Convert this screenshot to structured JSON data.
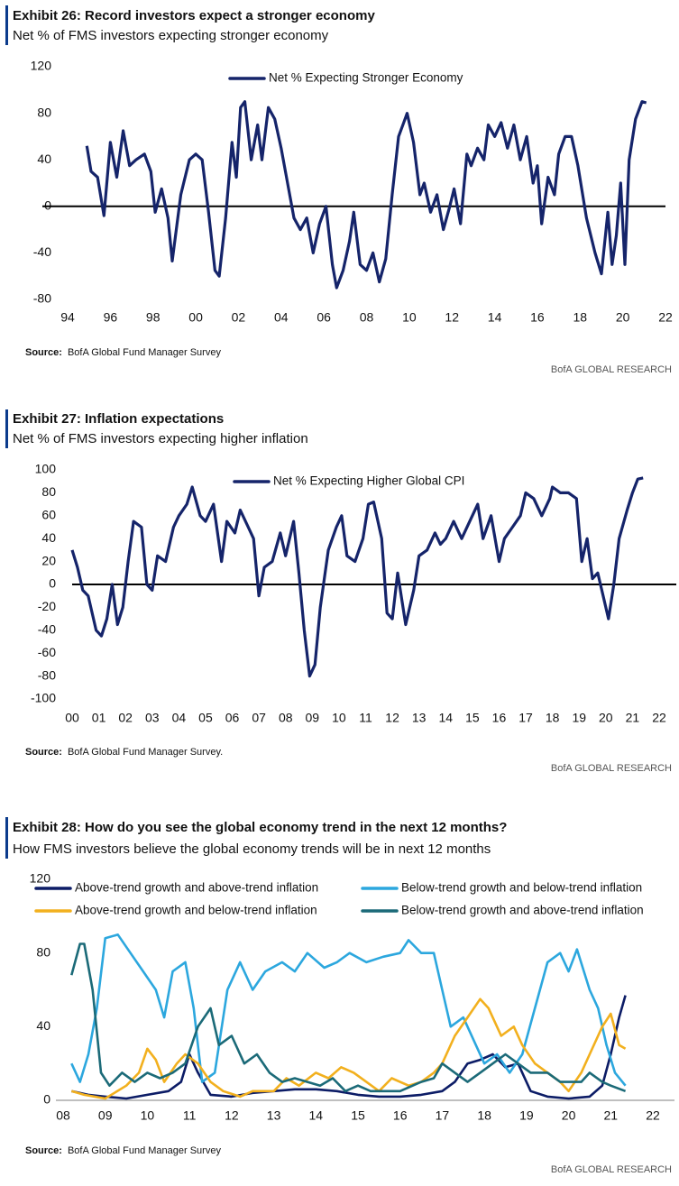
{
  "chart_data": [
    {
      "type": "line",
      "title": "Exhibit 26: Record investors expect a stronger economy",
      "subtitle": "Net % of FMS investors expecting stronger economy",
      "source_label": "Source:",
      "source": "BofA Global Fund Manager Survey",
      "credit": "BofA GLOBAL RESEARCH",
      "legend": "top",
      "xlim": [
        1994,
        2022
      ],
      "ylim": [
        -80,
        120
      ],
      "xticks": [
        {
          "value": 1994,
          "label": "94"
        },
        {
          "value": 1996,
          "label": "96"
        },
        {
          "value": 1998,
          "label": "98"
        },
        {
          "value": 2000,
          "label": "00"
        },
        {
          "value": 2002,
          "label": "02"
        },
        {
          "value": 2004,
          "label": "04"
        },
        {
          "value": 2006,
          "label": "06"
        },
        {
          "value": 2008,
          "label": "08"
        },
        {
          "value": 2010,
          "label": "10"
        },
        {
          "value": 2012,
          "label": "12"
        },
        {
          "value": 2014,
          "label": "14"
        },
        {
          "value": 2016,
          "label": "16"
        },
        {
          "value": 2018,
          "label": "18"
        },
        {
          "value": 2020,
          "label": "20"
        },
        {
          "value": 2022,
          "label": "22"
        }
      ],
      "yticks": [
        -80,
        -40,
        0,
        40,
        80,
        120
      ],
      "series": [
        {
          "name": "Net % Expecting Stronger Economy",
          "color": "#15246a",
          "x": [
            1994.9,
            1995.1,
            1995.4,
            1995.7,
            1996.0,
            1996.3,
            1996.6,
            1996.9,
            1997.2,
            1997.6,
            1997.9,
            1998.1,
            1998.4,
            1998.7,
            1998.9,
            1999.3,
            1999.7,
            2000.0,
            2000.3,
            2000.6,
            2000.9,
            2001.1,
            2001.4,
            2001.7,
            2001.9,
            2002.1,
            2002.3,
            2002.6,
            2002.9,
            2003.1,
            2003.4,
            2003.7,
            2004.0,
            2004.3,
            2004.6,
            2004.9,
            2005.2,
            2005.5,
            2005.8,
            2006.1,
            2006.4,
            2006.6,
            2006.9,
            2007.2,
            2007.4,
            2007.7,
            2008.0,
            2008.3,
            2008.6,
            2008.9,
            2009.2,
            2009.5,
            2009.7,
            2009.9,
            2010.2,
            2010.5,
            2010.7,
            2011.0,
            2011.3,
            2011.6,
            2011.9,
            2012.1,
            2012.4,
            2012.7,
            2012.9,
            2013.2,
            2013.5,
            2013.7,
            2014.0,
            2014.3,
            2014.6,
            2014.9,
            2015.2,
            2015.5,
            2015.8,
            2016.0,
            2016.2,
            2016.5,
            2016.8,
            2017.0,
            2017.3,
            2017.6,
            2017.9,
            2018.3,
            2018.7,
            2019.0,
            2019.3,
            2019.5,
            2019.7,
            2019.9,
            2020.1,
            2020.3,
            2020.6,
            2020.9,
            2021.1
          ],
          "values": [
            52,
            30,
            25,
            -8,
            55,
            25,
            65,
            35,
            40,
            45,
            30,
            -5,
            15,
            -10,
            -47,
            10,
            40,
            45,
            40,
            -5,
            -55,
            -60,
            -10,
            55,
            25,
            85,
            90,
            40,
            70,
            40,
            85,
            75,
            50,
            20,
            -10,
            -20,
            -10,
            -40,
            -15,
            0,
            -50,
            -70,
            -55,
            -30,
            -5,
            -50,
            -55,
            -40,
            -65,
            -45,
            10,
            60,
            70,
            80,
            55,
            10,
            20,
            -5,
            10,
            -20,
            0,
            15,
            -15,
            45,
            35,
            50,
            40,
            70,
            60,
            72,
            50,
            70,
            40,
            60,
            20,
            35,
            -15,
            25,
            10,
            45,
            60,
            60,
            35,
            -10,
            -40,
            -58,
            -5,
            -50,
            -25,
            20,
            -50,
            40,
            75,
            90,
            89
          ]
        }
      ]
    },
    {
      "type": "line",
      "title": "Exhibit 27: Inflation expectations",
      "subtitle": "Net % of FMS investors expecting higher inflation",
      "source_label": "Source:",
      "source": "BofA Global Fund Manager Survey.",
      "credit": "BofA GLOBAL RESEARCH",
      "legend": "top",
      "xlim": [
        2000,
        2022
      ],
      "ylim": [
        -100,
        100
      ],
      "xticks": [
        {
          "value": 2000,
          "label": "00"
        },
        {
          "value": 2001,
          "label": "01"
        },
        {
          "value": 2002,
          "label": "02"
        },
        {
          "value": 2003,
          "label": "03"
        },
        {
          "value": 2004,
          "label": "04"
        },
        {
          "value": 2005,
          "label": "05"
        },
        {
          "value": 2006,
          "label": "06"
        },
        {
          "value": 2007,
          "label": "07"
        },
        {
          "value": 2008,
          "label": "08"
        },
        {
          "value": 2009,
          "label": "09"
        },
        {
          "value": 2010,
          "label": "10"
        },
        {
          "value": 2011,
          "label": "11"
        },
        {
          "value": 2012,
          "label": "12"
        },
        {
          "value": 2013,
          "label": "13"
        },
        {
          "value": 2014,
          "label": "14"
        },
        {
          "value": 2015,
          "label": "15"
        },
        {
          "value": 2016,
          "label": "16"
        },
        {
          "value": 2017,
          "label": "17"
        },
        {
          "value": 2018,
          "label": "18"
        },
        {
          "value": 2019,
          "label": "19"
        },
        {
          "value": 2020,
          "label": "20"
        },
        {
          "value": 2021,
          "label": "21"
        },
        {
          "value": 2022,
          "label": "22"
        }
      ],
      "yticks": [
        -100,
        -80,
        -60,
        -40,
        -20,
        0,
        20,
        40,
        60,
        80,
        100
      ],
      "series": [
        {
          "name": "Net % Expecting Higher Global CPI",
          "color": "#15246a",
          "x": [
            2000.0,
            2000.2,
            2000.4,
            2000.6,
            2000.9,
            2001.1,
            2001.3,
            2001.5,
            2001.7,
            2001.9,
            2002.1,
            2002.3,
            2002.6,
            2002.8,
            2003.0,
            2003.2,
            2003.5,
            2003.8,
            2004.0,
            2004.3,
            2004.5,
            2004.8,
            2005.0,
            2005.3,
            2005.6,
            2005.8,
            2006.1,
            2006.3,
            2006.6,
            2006.8,
            2007.0,
            2007.2,
            2007.5,
            2007.8,
            2008.0,
            2008.3,
            2008.5,
            2008.7,
            2008.9,
            2009.1,
            2009.3,
            2009.6,
            2009.9,
            2010.1,
            2010.3,
            2010.6,
            2010.9,
            2011.1,
            2011.3,
            2011.6,
            2011.8,
            2012.0,
            2012.2,
            2012.5,
            2012.8,
            2013.0,
            2013.3,
            2013.6,
            2013.8,
            2014.0,
            2014.3,
            2014.6,
            2014.9,
            2015.2,
            2015.4,
            2015.7,
            2016.0,
            2016.2,
            2016.5,
            2016.8,
            2017.0,
            2017.3,
            2017.6,
            2017.9,
            2018.0,
            2018.3,
            2018.6,
            2018.9,
            2019.1,
            2019.3,
            2019.5,
            2019.7,
            2019.9,
            2020.1,
            2020.3,
            2020.5,
            2020.8,
            2021.0,
            2021.2,
            2021.4
          ],
          "values": [
            30,
            15,
            -5,
            -10,
            -40,
            -45,
            -30,
            0,
            -35,
            -20,
            20,
            55,
            50,
            0,
            -5,
            25,
            20,
            50,
            60,
            70,
            85,
            60,
            55,
            70,
            20,
            55,
            45,
            65,
            50,
            40,
            -10,
            15,
            20,
            45,
            25,
            55,
            10,
            -40,
            -80,
            -70,
            -20,
            30,
            50,
            60,
            25,
            20,
            40,
            70,
            72,
            40,
            -25,
            -30,
            10,
            -35,
            -5,
            25,
            30,
            45,
            35,
            40,
            55,
            40,
            55,
            70,
            40,
            60,
            20,
            40,
            50,
            60,
            80,
            75,
            60,
            75,
            85,
            80,
            80,
            75,
            20,
            40,
            5,
            10,
            -10,
            -30,
            0,
            40,
            65,
            80,
            92,
            93
          ]
        }
      ]
    },
    {
      "type": "line",
      "title": "Exhibit 28: How do you see the global economy trend in the next 12 months?",
      "subtitle": "How FMS investors believe the global economy trends will be in next 12 months",
      "source_label": "Source:",
      "source": "BofA Global Fund Manager Survey",
      "credit": "BofA GLOBAL RESEARCH",
      "legend": "top",
      "xlim": [
        2008,
        2022
      ],
      "ylim": [
        0,
        120
      ],
      "xticks": [
        {
          "value": 2008,
          "label": "08"
        },
        {
          "value": 2009,
          "label": "09"
        },
        {
          "value": 2010,
          "label": "10"
        },
        {
          "value": 2011,
          "label": "11"
        },
        {
          "value": 2012,
          "label": "12"
        },
        {
          "value": 2013,
          "label": "13"
        },
        {
          "value": 2014,
          "label": "14"
        },
        {
          "value": 2015,
          "label": "15"
        },
        {
          "value": 2016,
          "label": "16"
        },
        {
          "value": 2017,
          "label": "17"
        },
        {
          "value": 2018,
          "label": "18"
        },
        {
          "value": 2019,
          "label": "19"
        },
        {
          "value": 2020,
          "label": "20"
        },
        {
          "value": 2021,
          "label": "21"
        },
        {
          "value": 2022,
          "label": "22"
        }
      ],
      "yticks": [
        0,
        40,
        80,
        120
      ],
      "series": [
        {
          "name": "Above-trend growth and above-trend inflation",
          "color": "#0c1c66",
          "x": [
            2008.2,
            2008.6,
            2009.0,
            2009.5,
            2010.0,
            2010.5,
            2010.8,
            2011.0,
            2011.2,
            2011.5,
            2012,
            2012.5,
            2013,
            2013.5,
            2014,
            2014.5,
            2015,
            2015.5,
            2016,
            2016.5,
            2017,
            2017.3,
            2017.6,
            2017.9,
            2018.2,
            2018.5,
            2018.8,
            2019.1,
            2019.5,
            2020,
            2020.5,
            2020.8,
            2021.0,
            2021.2,
            2021.35
          ],
          "values": [
            5,
            3,
            2,
            1,
            3,
            5,
            10,
            25,
            15,
            3,
            2,
            4,
            5,
            6,
            6,
            5,
            3,
            2,
            2,
            3,
            5,
            10,
            20,
            22,
            25,
            18,
            20,
            5,
            2,
            1,
            2,
            8,
            25,
            45,
            57
          ]
        },
        {
          "name": "Below-trend growth and below-trend inflation",
          "color": "#2ca7de",
          "x": [
            2008.2,
            2008.4,
            2008.6,
            2008.8,
            2009.0,
            2009.3,
            2009.6,
            2009.9,
            2010.2,
            2010.4,
            2010.6,
            2010.9,
            2011.1,
            2011.3,
            2011.6,
            2011.9,
            2012.2,
            2012.5,
            2012.8,
            2013.2,
            2013.5,
            2013.8,
            2014.2,
            2014.5,
            2014.8,
            2015.2,
            2015.6,
            2016.0,
            2016.2,
            2016.5,
            2016.8,
            2017.0,
            2017.2,
            2017.5,
            2017.8,
            2018.0,
            2018.3,
            2018.6,
            2018.9,
            2019.2,
            2019.5,
            2019.8,
            2020.0,
            2020.2,
            2020.5,
            2020.7,
            2020.9,
            2021.1,
            2021.35
          ],
          "values": [
            20,
            10,
            25,
            50,
            88,
            90,
            80,
            70,
            60,
            45,
            70,
            75,
            50,
            10,
            15,
            60,
            75,
            60,
            70,
            75,
            70,
            80,
            72,
            75,
            80,
            75,
            78,
            80,
            87,
            80,
            80,
            60,
            40,
            45,
            30,
            20,
            25,
            15,
            25,
            50,
            75,
            80,
            70,
            82,
            60,
            50,
            30,
            15,
            8
          ]
        },
        {
          "name": "Above-trend growth and below-trend inflation",
          "color": "#f2b01e",
          "x": [
            2008.2,
            2008.5,
            2009,
            2009.5,
            2009.8,
            2010.0,
            2010.2,
            2010.4,
            2010.7,
            2010.9,
            2011.2,
            2011.5,
            2011.8,
            2012.2,
            2012.5,
            2013,
            2013.3,
            2013.6,
            2014.0,
            2014.3,
            2014.6,
            2014.9,
            2015.2,
            2015.5,
            2015.8,
            2016.2,
            2016.5,
            2016.8,
            2017.0,
            2017.3,
            2017.6,
            2017.9,
            2018.1,
            2018.4,
            2018.7,
            2018.9,
            2019.2,
            2019.5,
            2019.8,
            2020.0,
            2020.3,
            2020.5,
            2020.8,
            2021.0,
            2021.2,
            2021.35
          ],
          "values": [
            5,
            3,
            1,
            8,
            15,
            28,
            22,
            10,
            20,
            25,
            20,
            10,
            5,
            2,
            5,
            5,
            12,
            8,
            15,
            12,
            18,
            15,
            10,
            5,
            12,
            8,
            10,
            15,
            20,
            35,
            45,
            55,
            50,
            35,
            40,
            30,
            20,
            15,
            10,
            5,
            15,
            25,
            40,
            47,
            30,
            28
          ]
        },
        {
          "name": "Below-trend growth and above-trend inflation",
          "color": "#1b6a78",
          "x": [
            2008.2,
            2008.4,
            2008.5,
            2008.7,
            2008.9,
            2009.1,
            2009.4,
            2009.7,
            2010.0,
            2010.3,
            2010.6,
            2010.9,
            2011.2,
            2011.5,
            2011.7,
            2012.0,
            2012.3,
            2012.6,
            2012.9,
            2013.2,
            2013.5,
            2013.8,
            2014.1,
            2014.4,
            2014.7,
            2015.0,
            2015.3,
            2015.6,
            2016.0,
            2016.5,
            2016.8,
            2017.0,
            2017.3,
            2017.6,
            2017.9,
            2018.2,
            2018.5,
            2018.8,
            2019.1,
            2019.5,
            2019.8,
            2020.0,
            2020.3,
            2020.5,
            2020.8,
            2021.0,
            2021.35
          ],
          "values": [
            68,
            85,
            85,
            60,
            15,
            8,
            15,
            10,
            15,
            12,
            15,
            20,
            40,
            50,
            30,
            35,
            20,
            25,
            15,
            10,
            12,
            10,
            8,
            12,
            5,
            8,
            5,
            5,
            5,
            10,
            12,
            20,
            15,
            10,
            15,
            20,
            25,
            20,
            15,
            15,
            10,
            10,
            10,
            15,
            10,
            8,
            5
          ]
        }
      ]
    }
  ]
}
